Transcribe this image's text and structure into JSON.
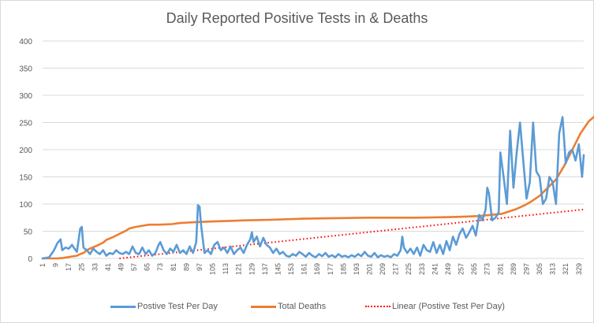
{
  "chart_data": {
    "type": "line",
    "title": "Daily Reported Positive Tests in & Deaths",
    "xlabel": "",
    "ylabel": "",
    "ylim": [
      0,
      400
    ],
    "yticks": [
      0,
      50,
      100,
      150,
      200,
      250,
      300,
      350,
      400
    ],
    "grid": true,
    "legend_position": "bottom",
    "x_range": [
      1,
      332
    ],
    "x_tick_labels": [
      "1",
      "9",
      "17",
      "25",
      "33",
      "41",
      "49",
      "57",
      "65",
      "73",
      "81",
      "89",
      "97",
      "105",
      "113",
      "121",
      "129",
      "137",
      "145",
      "153",
      "161",
      "169",
      "177",
      "185",
      "193",
      "201",
      "209",
      "217",
      "225",
      "233",
      "241",
      "249",
      "257",
      "265",
      "273",
      "281",
      "289",
      "297",
      "305",
      "313",
      "321",
      "329"
    ],
    "series": [
      {
        "name": "Postive Test Per Day",
        "color": "#5b9bd5",
        "style": "solid",
        "points": [
          [
            1,
            0
          ],
          [
            5,
            2
          ],
          [
            8,
            15
          ],
          [
            10,
            28
          ],
          [
            12,
            35
          ],
          [
            13,
            15
          ],
          [
            15,
            20
          ],
          [
            17,
            18
          ],
          [
            19,
            25
          ],
          [
            20,
            20
          ],
          [
            22,
            12
          ],
          [
            24,
            55
          ],
          [
            25,
            58
          ],
          [
            26,
            20
          ],
          [
            28,
            15
          ],
          [
            30,
            8
          ],
          [
            32,
            18
          ],
          [
            34,
            12
          ],
          [
            36,
            8
          ],
          [
            38,
            15
          ],
          [
            40,
            5
          ],
          [
            42,
            10
          ],
          [
            44,
            8
          ],
          [
            46,
            15
          ],
          [
            48,
            10
          ],
          [
            50,
            8
          ],
          [
            52,
            12
          ],
          [
            54,
            8
          ],
          [
            56,
            22
          ],
          [
            58,
            10
          ],
          [
            60,
            8
          ],
          [
            62,
            20
          ],
          [
            64,
            8
          ],
          [
            66,
            15
          ],
          [
            68,
            5
          ],
          [
            70,
            10
          ],
          [
            72,
            25
          ],
          [
            73,
            30
          ],
          [
            75,
            15
          ],
          [
            77,
            8
          ],
          [
            79,
            18
          ],
          [
            81,
            12
          ],
          [
            83,
            25
          ],
          [
            85,
            10
          ],
          [
            87,
            15
          ],
          [
            89,
            8
          ],
          [
            91,
            22
          ],
          [
            93,
            10
          ],
          [
            95,
            30
          ],
          [
            96,
            98
          ],
          [
            97,
            95
          ],
          [
            98,
            60
          ],
          [
            100,
            10
          ],
          [
            102,
            15
          ],
          [
            104,
            8
          ],
          [
            106,
            25
          ],
          [
            108,
            30
          ],
          [
            110,
            15
          ],
          [
            112,
            20
          ],
          [
            114,
            10
          ],
          [
            116,
            22
          ],
          [
            118,
            8
          ],
          [
            120,
            15
          ],
          [
            122,
            20
          ],
          [
            124,
            10
          ],
          [
            126,
            25
          ],
          [
            128,
            35
          ],
          [
            129,
            48
          ],
          [
            130,
            30
          ],
          [
            132,
            40
          ],
          [
            134,
            22
          ],
          [
            136,
            38
          ],
          [
            138,
            25
          ],
          [
            140,
            20
          ],
          [
            142,
            10
          ],
          [
            144,
            18
          ],
          [
            146,
            8
          ],
          [
            148,
            12
          ],
          [
            150,
            5
          ],
          [
            152,
            3
          ],
          [
            154,
            8
          ],
          [
            156,
            5
          ],
          [
            158,
            12
          ],
          [
            160,
            8
          ],
          [
            162,
            3
          ],
          [
            164,
            10
          ],
          [
            166,
            5
          ],
          [
            168,
            2
          ],
          [
            170,
            8
          ],
          [
            172,
            4
          ],
          [
            174,
            10
          ],
          [
            176,
            3
          ],
          [
            178,
            6
          ],
          [
            180,
            2
          ],
          [
            182,
            8
          ],
          [
            184,
            3
          ],
          [
            186,
            5
          ],
          [
            188,
            2
          ],
          [
            190,
            6
          ],
          [
            192,
            3
          ],
          [
            194,
            8
          ],
          [
            196,
            4
          ],
          [
            198,
            12
          ],
          [
            200,
            5
          ],
          [
            202,
            3
          ],
          [
            204,
            10
          ],
          [
            206,
            2
          ],
          [
            208,
            6
          ],
          [
            210,
            3
          ],
          [
            212,
            5
          ],
          [
            214,
            2
          ],
          [
            216,
            8
          ],
          [
            218,
            5
          ],
          [
            220,
            15
          ],
          [
            221,
            40
          ],
          [
            222,
            20
          ],
          [
            224,
            10
          ],
          [
            226,
            18
          ],
          [
            228,
            8
          ],
          [
            230,
            20
          ],
          [
            232,
            5
          ],
          [
            234,
            25
          ],
          [
            236,
            15
          ],
          [
            238,
            12
          ],
          [
            240,
            30
          ],
          [
            242,
            10
          ],
          [
            244,
            25
          ],
          [
            246,
            8
          ],
          [
            248,
            32
          ],
          [
            250,
            15
          ],
          [
            252,
            40
          ],
          [
            254,
            25
          ],
          [
            256,
            45
          ],
          [
            258,
            55
          ],
          [
            260,
            38
          ],
          [
            262,
            48
          ],
          [
            264,
            60
          ],
          [
            266,
            42
          ],
          [
            268,
            80
          ],
          [
            270,
            70
          ],
          [
            272,
            90
          ],
          [
            273,
            130
          ],
          [
            274,
            120
          ],
          [
            276,
            70
          ],
          [
            278,
            75
          ],
          [
            280,
            85
          ],
          [
            281,
            195
          ],
          [
            283,
            150
          ],
          [
            285,
            100
          ],
          [
            287,
            235
          ],
          [
            289,
            130
          ],
          [
            291,
            195
          ],
          [
            293,
            250
          ],
          [
            295,
            180
          ],
          [
            297,
            110
          ],
          [
            299,
            140
          ],
          [
            301,
            250
          ],
          [
            303,
            160
          ],
          [
            305,
            150
          ],
          [
            307,
            100
          ],
          [
            309,
            110
          ],
          [
            311,
            150
          ],
          [
            313,
            140
          ],
          [
            315,
            100
          ],
          [
            317,
            230
          ],
          [
            319,
            260
          ],
          [
            321,
            175
          ],
          [
            323,
            195
          ],
          [
            325,
            200
          ],
          [
            327,
            180
          ],
          [
            329,
            210
          ],
          [
            331,
            150
          ],
          [
            332,
            190
          ]
        ]
      },
      {
        "name": "Total Deaths",
        "color": "#ed7d31",
        "style": "solid",
        "points": [
          [
            1,
            0
          ],
          [
            10,
            0
          ],
          [
            14,
            1
          ],
          [
            18,
            3
          ],
          [
            22,
            5
          ],
          [
            24,
            8
          ],
          [
            26,
            10
          ],
          [
            28,
            15
          ],
          [
            30,
            18
          ],
          [
            34,
            23
          ],
          [
            38,
            29
          ],
          [
            40,
            34
          ],
          [
            44,
            39
          ],
          [
            48,
            45
          ],
          [
            52,
            51
          ],
          [
            54,
            55
          ],
          [
            58,
            58
          ],
          [
            62,
            60
          ],
          [
            66,
            62
          ],
          [
            72,
            62
          ],
          [
            80,
            63
          ],
          [
            85,
            65
          ],
          [
            90,
            66
          ],
          [
            96,
            67
          ],
          [
            105,
            68
          ],
          [
            115,
            69
          ],
          [
            125,
            70
          ],
          [
            140,
            71
          ],
          [
            160,
            73
          ],
          [
            180,
            74
          ],
          [
            200,
            75
          ],
          [
            230,
            75
          ],
          [
            250,
            76
          ],
          [
            260,
            77
          ],
          [
            268,
            78
          ],
          [
            275,
            80
          ],
          [
            282,
            82
          ],
          [
            290,
            90
          ],
          [
            296,
            98
          ],
          [
            300,
            105
          ],
          [
            305,
            115
          ],
          [
            310,
            130
          ],
          [
            315,
            145
          ],
          [
            320,
            170
          ],
          [
            325,
            200
          ],
          [
            330,
            230
          ],
          [
            335,
            252
          ],
          [
            340,
            265
          ]
        ]
      },
      {
        "name": "Linear (Postive Test Per Day)",
        "color": "#ff0000",
        "style": "dotted",
        "points": [
          [
            48,
            0
          ],
          [
            332,
            90
          ]
        ]
      }
    ]
  }
}
